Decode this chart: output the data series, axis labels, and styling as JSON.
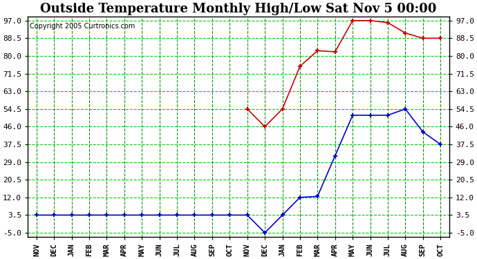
{
  "title": "Outside Temperature Monthly High/Low Sat Nov 5 00:00",
  "copyright": "Copyright 2005 Curtronics.com",
  "x_labels": [
    "NOV",
    "DEC",
    "JAN",
    "FEB",
    "MAR",
    "APR",
    "MAY",
    "JUN",
    "JUL",
    "AUG",
    "SEP",
    "OCT",
    "NOV",
    "DEC",
    "JAN",
    "FEB",
    "MAR",
    "APR",
    "MAY",
    "JUN",
    "JUL",
    "AUG",
    "SEP",
    "OCT"
  ],
  "y_ticks": [
    -5.0,
    3.5,
    12.0,
    20.5,
    29.0,
    37.5,
    46.0,
    54.5,
    63.0,
    71.5,
    80.0,
    88.5,
    97.0
  ],
  "ylim_min": -7.0,
  "ylim_max": 99.0,
  "high_x": [
    12,
    13,
    14,
    15,
    16,
    17,
    18,
    19,
    20,
    21,
    22,
    23
  ],
  "high_y": [
    54.5,
    46.0,
    54.5,
    75.0,
    82.5,
    82.0,
    97.0,
    97.0,
    96.0,
    91.0,
    88.5,
    88.5
  ],
  "low_x": [
    0,
    1,
    2,
    3,
    4,
    5,
    6,
    7,
    8,
    9,
    10,
    11,
    12,
    13,
    14,
    15,
    16,
    17,
    18,
    19,
    20,
    21,
    22,
    23
  ],
  "low_y": [
    3.5,
    3.5,
    3.5,
    3.5,
    3.5,
    3.5,
    3.5,
    3.5,
    3.5,
    3.5,
    3.5,
    3.5,
    3.5,
    -5.0,
    3.5,
    12.0,
    12.5,
    32.0,
    51.5,
    51.5,
    51.5,
    54.5,
    43.5,
    37.5
  ],
  "high_color": "#cc0000",
  "low_color": "#0000cc",
  "bg_color": "#ffffff",
  "plot_bg": "#ffffff",
  "grid_color_h": "#00cc00",
  "grid_color_v": "#009900",
  "title_fontsize": 13,
  "axis_label_fontsize": 7.5,
  "tick_fontsize": 8,
  "copyright_fontsize": 7
}
